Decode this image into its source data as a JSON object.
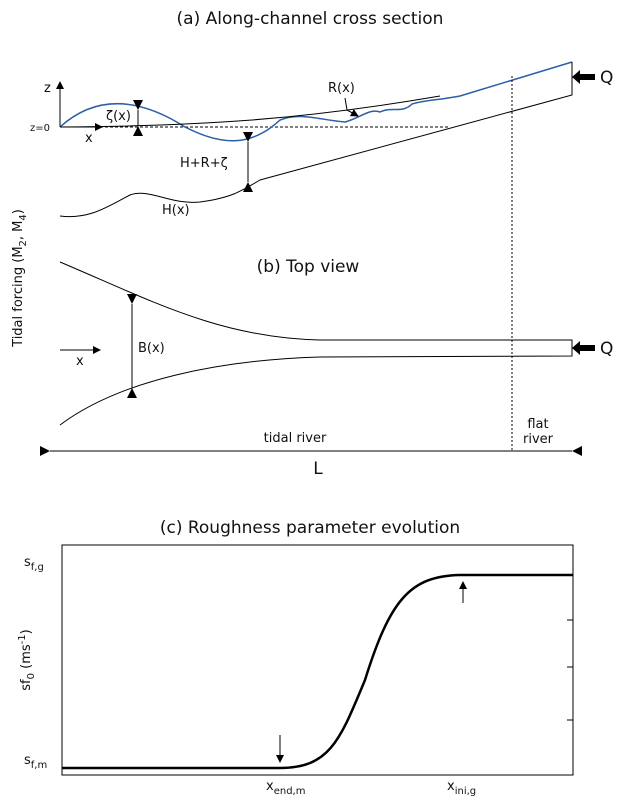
{
  "panel_a": {
    "title": "(a) Along-channel cross section",
    "z_axis": "z",
    "z_zero": "z=0",
    "x_axis": "x",
    "zeta": "ζ(x)",
    "roughness": "R(x)",
    "depth": "H+R+ζ",
    "bed": "H(x)",
    "discharge": "Q"
  },
  "forcing_label": {
    "parts": [
      "Tidal forcing  (M",
      "2",
      ", M",
      "4",
      ")"
    ]
  },
  "panel_b": {
    "title": "(b) Top view",
    "width": "B(x)",
    "x_axis": "x",
    "discharge": "Q",
    "tidal_river": "tidal river",
    "flat_river": [
      "flat",
      "river"
    ],
    "length": "L"
  },
  "panel_c": {
    "title": "(c) Roughness parameter evolution",
    "y_top": {
      "main": "s",
      "sub": "f,g"
    },
    "y_bottom": {
      "main": "s",
      "sub": "f,m"
    },
    "y_label": {
      "parts": [
        "sf",
        "0",
        " (ms",
        "-1",
        ")"
      ]
    },
    "x_end": {
      "main": "x",
      "sub": "end,m"
    },
    "x_ini": {
      "main": "x",
      "sub": "ini,g"
    }
  }
}
